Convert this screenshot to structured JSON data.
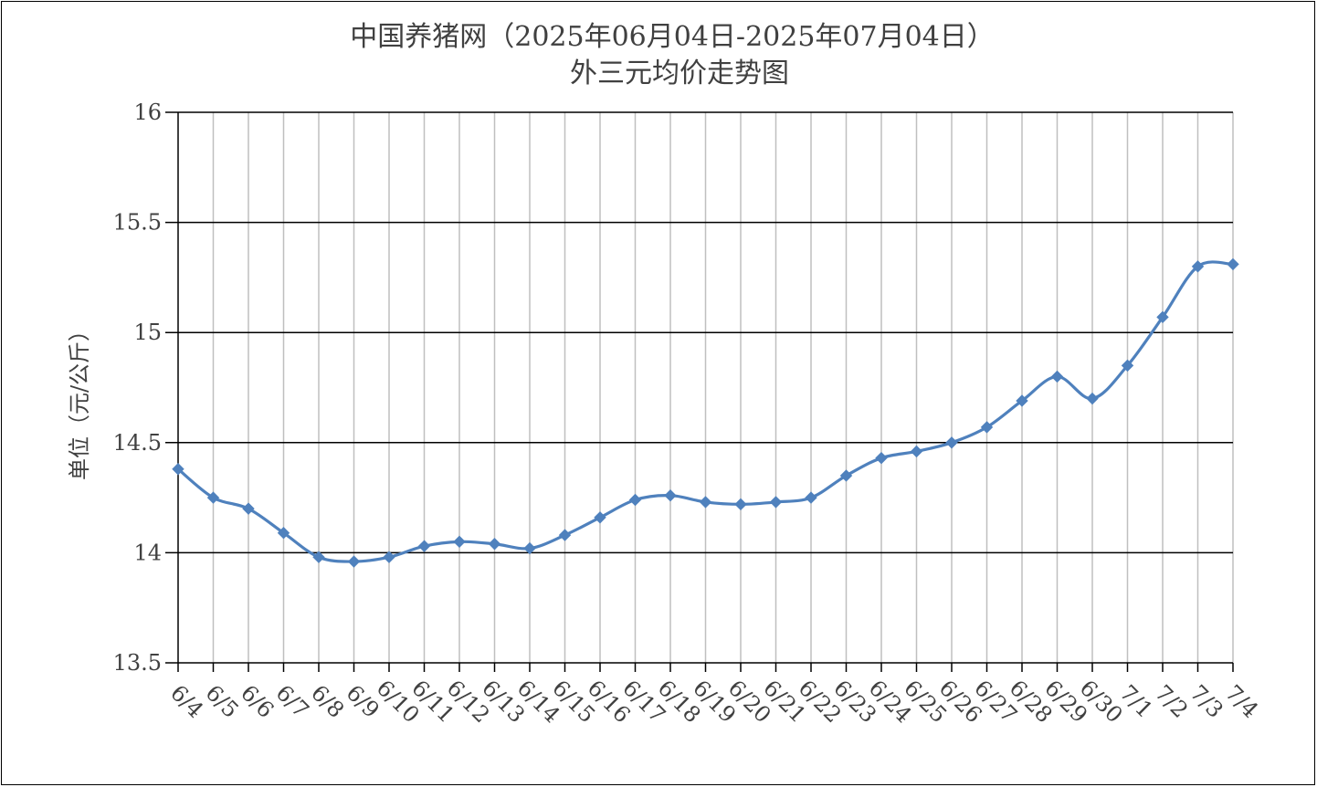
{
  "chart_data": {
    "type": "line",
    "title": "中国养猪网（2025年06月04日-2025年07月04日）",
    "subtitle": "外三元均价走势图",
    "xlabel": "",
    "ylabel": "单位（元/公斤）",
    "ylim": [
      13.5,
      16
    ],
    "yticks": [
      "13.5",
      "14",
      "14.5",
      "15",
      "15.5",
      "16"
    ],
    "categories": [
      "6/4",
      "6/5",
      "6/6",
      "6/7",
      "6/8",
      "6/9",
      "6/10",
      "6/11",
      "6/12",
      "6/13",
      "6/14",
      "6/15",
      "6/16",
      "6/17",
      "6/18",
      "6/19",
      "6/20",
      "6/21",
      "6/22",
      "6/23",
      "6/24",
      "6/25",
      "6/26",
      "6/27",
      "6/28",
      "6/29",
      "6/30",
      "7/1",
      "7/2",
      "7/3",
      "7/4"
    ],
    "values": [
      14.38,
      14.25,
      14.2,
      14.09,
      13.98,
      13.96,
      13.98,
      14.03,
      14.05,
      14.04,
      14.02,
      14.08,
      14.16,
      14.24,
      14.26,
      14.23,
      14.22,
      14.23,
      14.25,
      14.35,
      14.43,
      14.46,
      14.5,
      14.57,
      14.69,
      14.8,
      14.7,
      14.85,
      15.07,
      15.3,
      15.31
    ],
    "grid": true,
    "legend": "none",
    "line_color": "#4F81BD",
    "grid_color": "#000000",
    "vgrid_color": "#BFBFBF"
  }
}
